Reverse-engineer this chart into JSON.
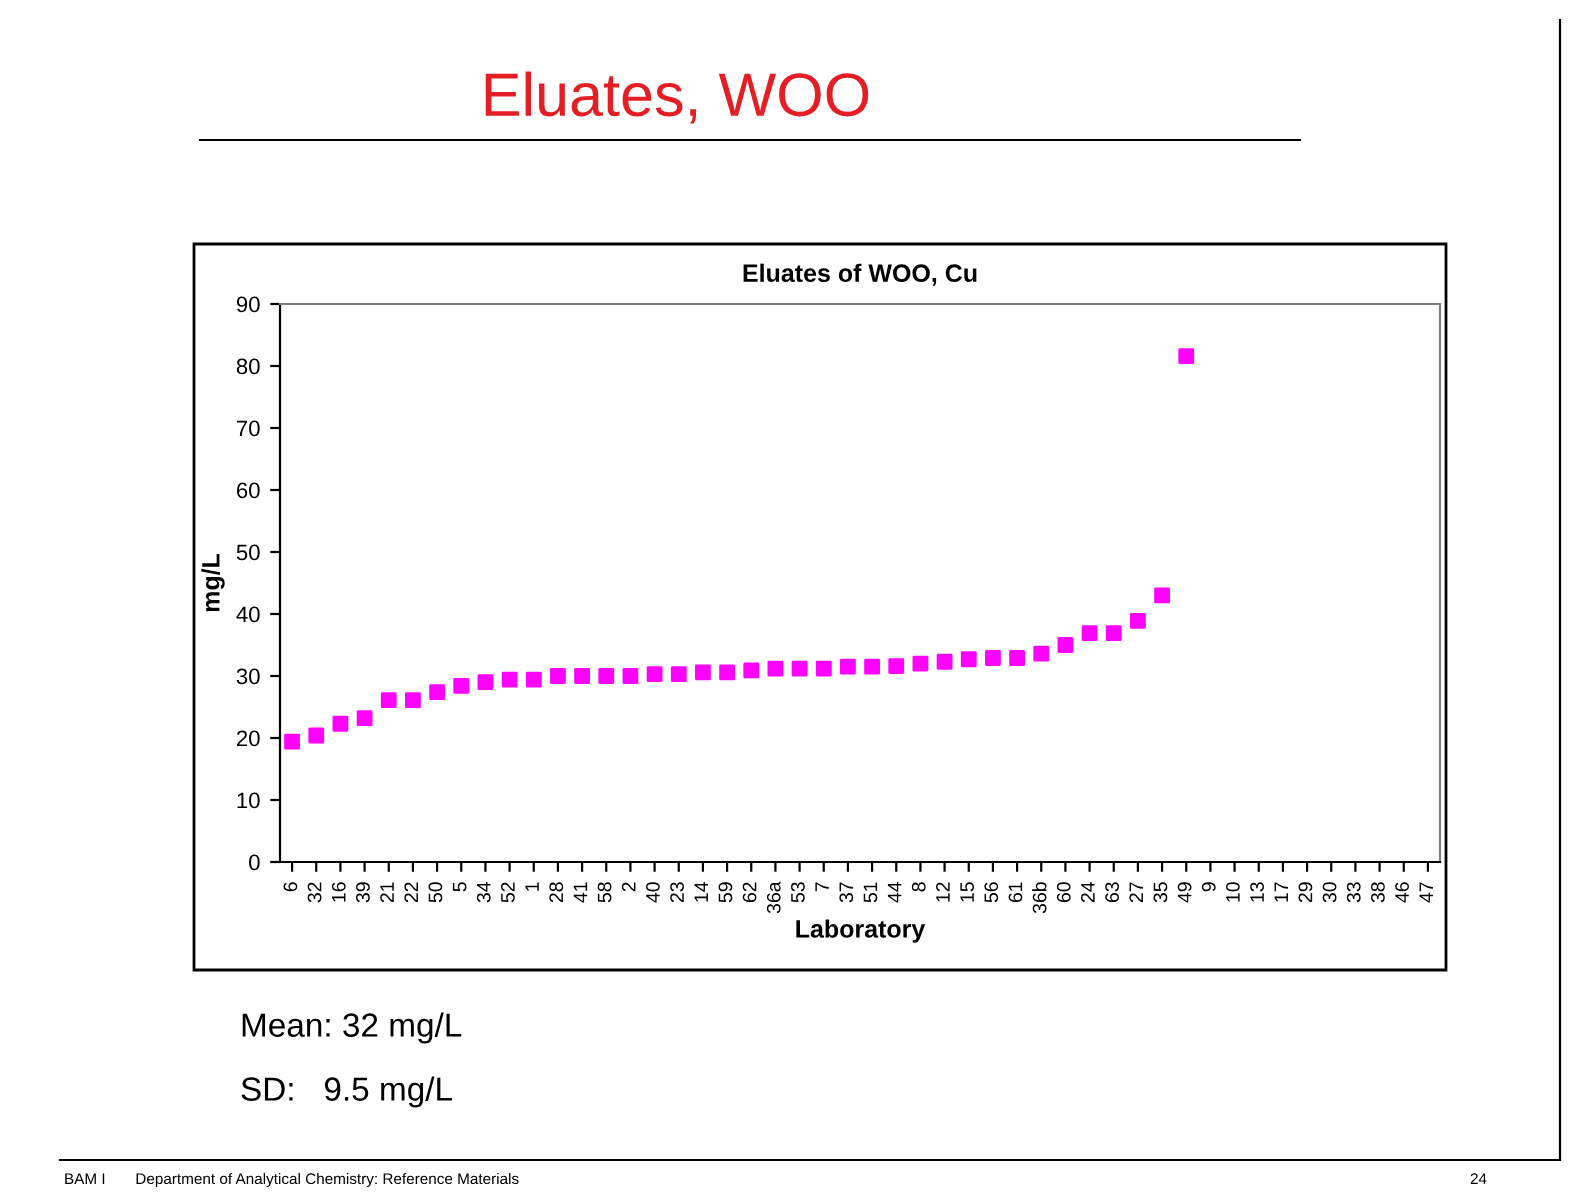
{
  "chart_data": {
    "type": "scatter",
    "title": "Eluates of WOO, Cu",
    "xlabel": "Laboratory",
    "ylabel": "mg/L",
    "categories": [
      "6",
      "32",
      "16",
      "39",
      "21",
      "22",
      "50",
      "5",
      "34",
      "52",
      "1",
      "28",
      "41",
      "58",
      "2",
      "40",
      "23",
      "14",
      "59",
      "62",
      "36a",
      "53",
      "7",
      "37",
      "51",
      "44",
      "8",
      "12",
      "15",
      "56",
      "61",
      "36b",
      "60",
      "24",
      "63",
      "27",
      "35",
      "49",
      "9",
      "10",
      "13",
      "17",
      "29",
      "30",
      "33",
      "38",
      "46",
      "47"
    ],
    "series": [
      {
        "color": "#ff00ff",
        "values": [
          19.4,
          20.4,
          22.3,
          23.2,
          26.1,
          26.1,
          27.4,
          28.4,
          29.0,
          29.4,
          29.4,
          30.0,
          30.0,
          30.0,
          30.0,
          30.3,
          30.3,
          30.6,
          30.6,
          30.9,
          31.2,
          31.2,
          31.2,
          31.5,
          31.5,
          31.6,
          32.0,
          32.3,
          32.7,
          32.9,
          32.9,
          33.6,
          35.0,
          36.9,
          36.9,
          38.9,
          43.0,
          81.6,
          null,
          null,
          null,
          null,
          null,
          null,
          null,
          null,
          null,
          null
        ]
      }
    ],
    "ylim": [
      0,
      90
    ],
    "yticks": [
      0,
      10,
      20,
      30,
      40,
      50,
      60,
      70,
      80,
      90
    ],
    "marker": "square",
    "grid": false,
    "legend": false,
    "annotations": [
      "Eluates, WOO",
      "Mean: 32 mg/L",
      "SD:   9.5 mg/L",
      "BAM I       Department of Analytical Chemistry: Reference Materials",
      "24"
    ]
  }
}
